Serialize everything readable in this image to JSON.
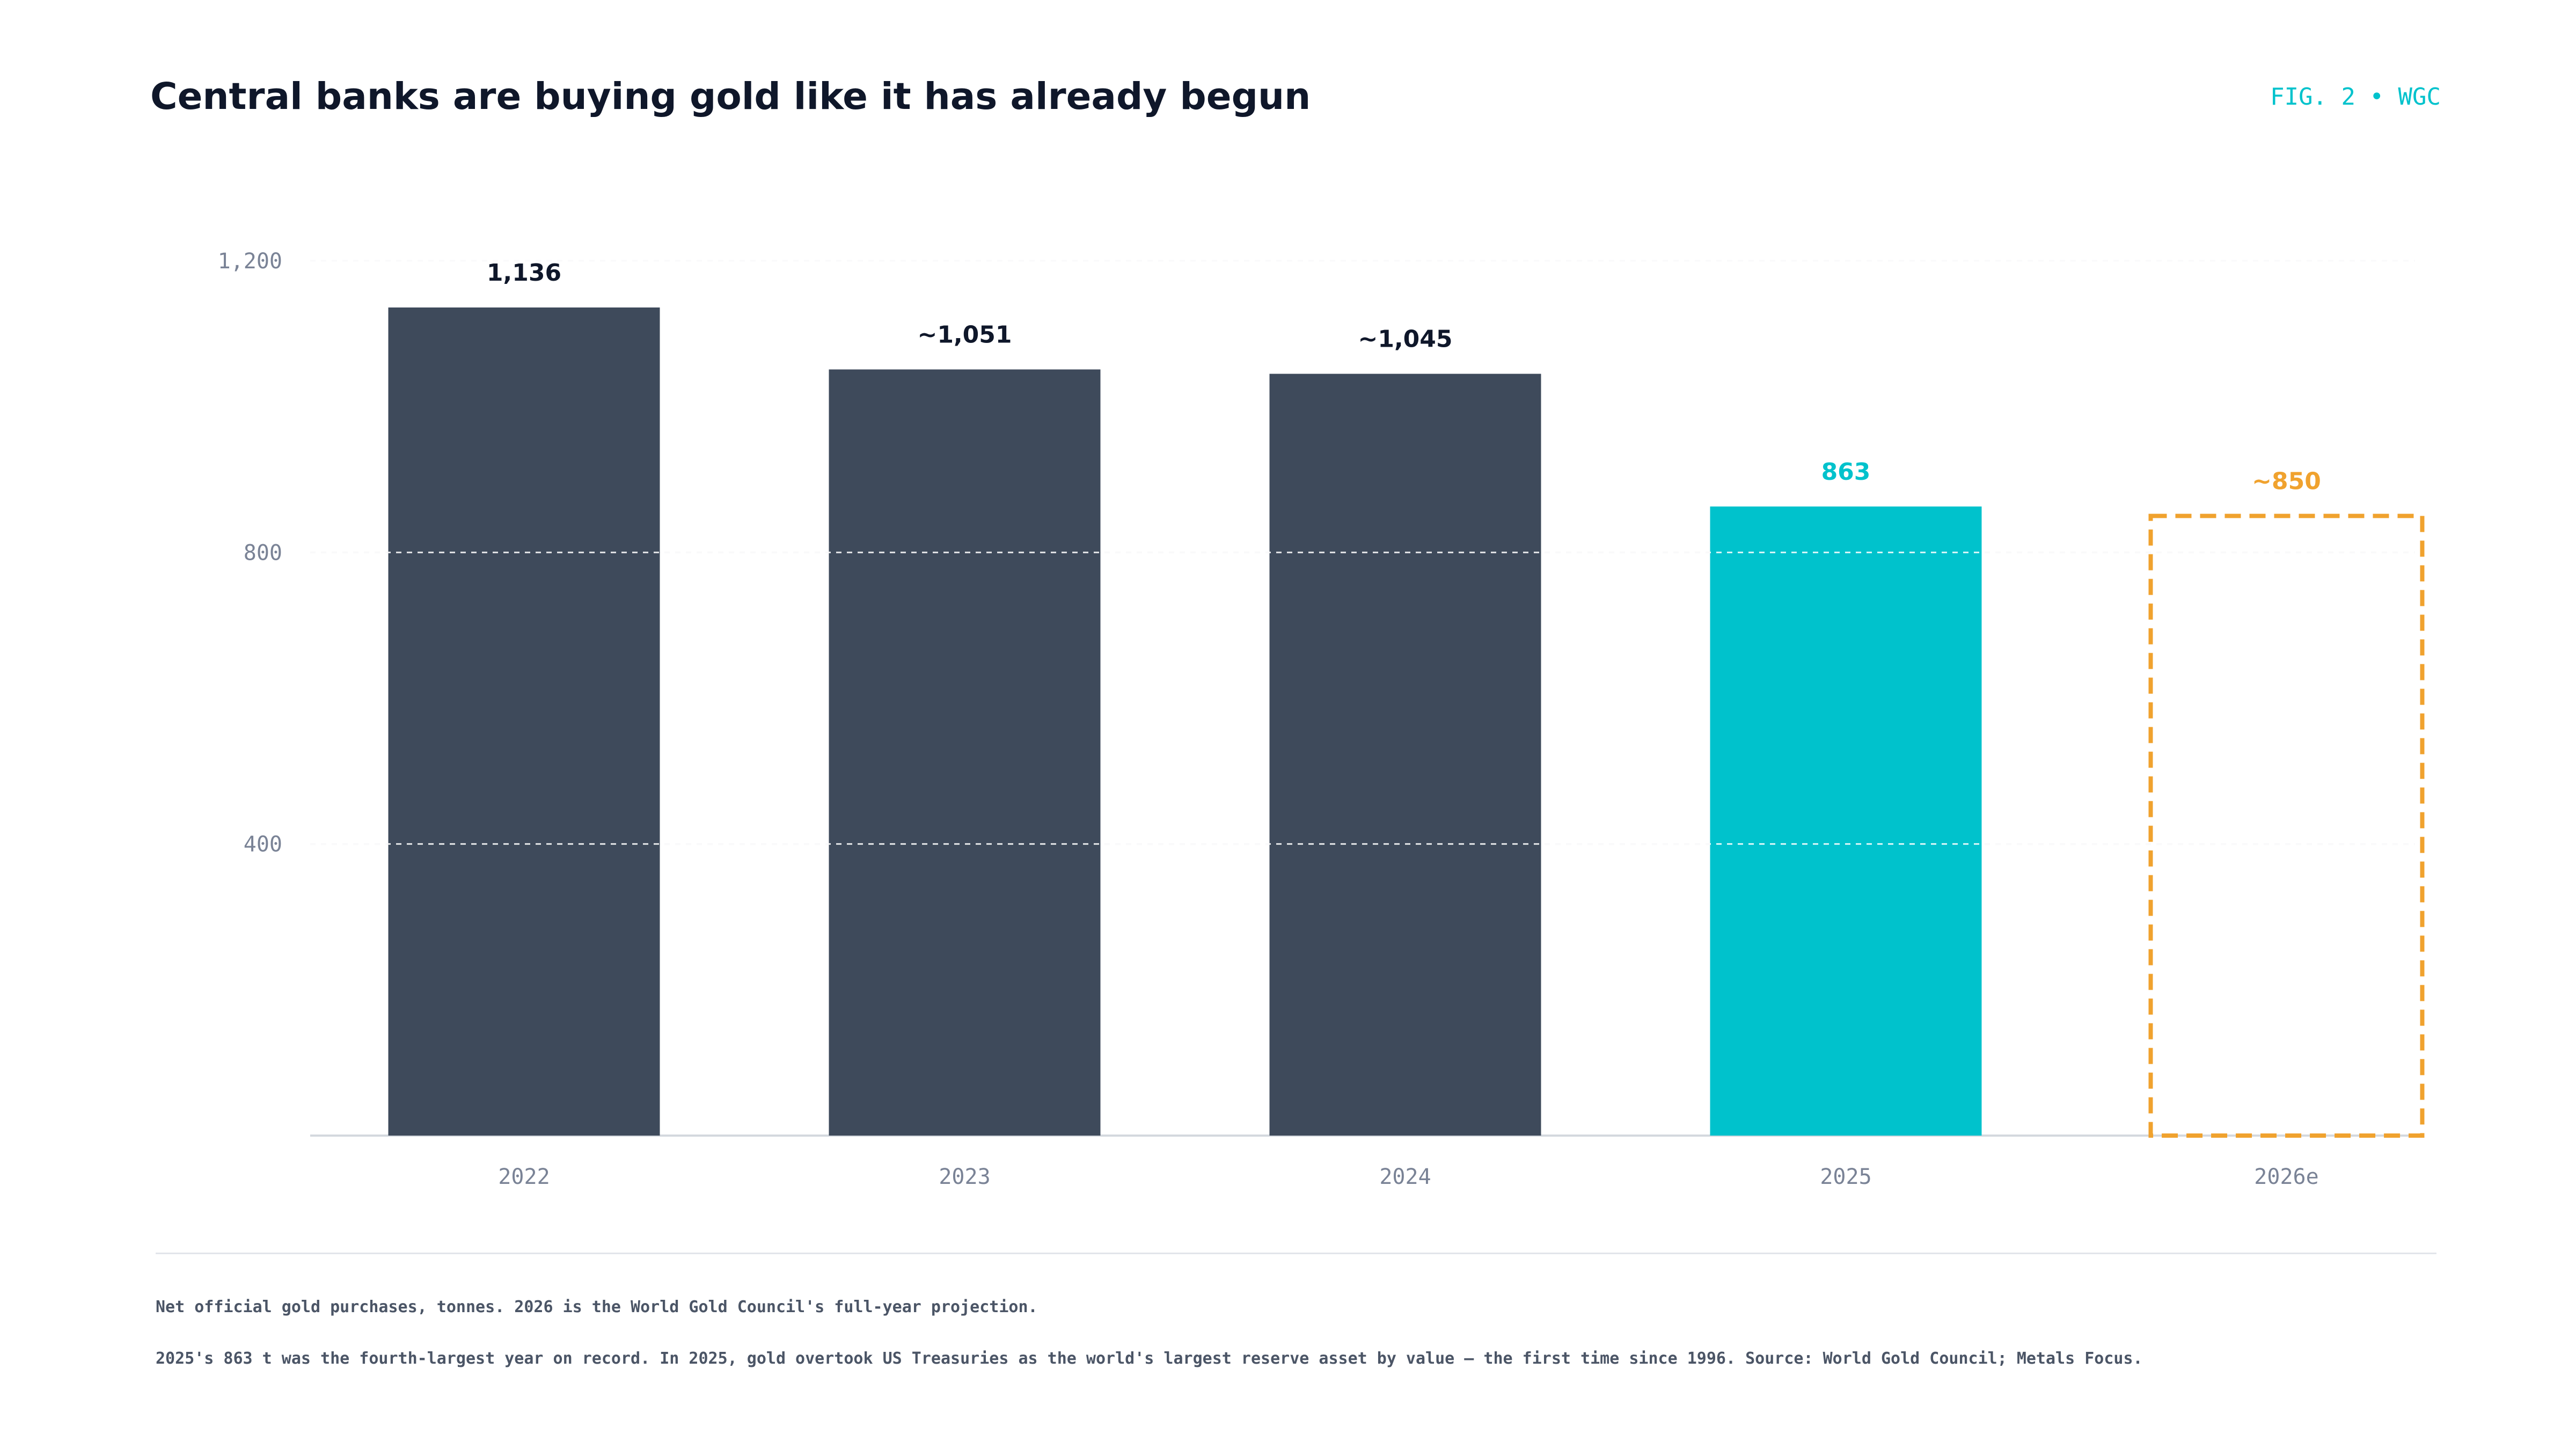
{
  "header": {
    "title": "Central banks are buying gold like it has already begun",
    "fig_tag": "FIG. 2 • WGC"
  },
  "colors": {
    "historic_bar": "#3e4a5b",
    "latest_bar": "#00c2cc",
    "estimate_outline": "#f0a22e",
    "value_label": "#0f172a",
    "axis_text": "#7a8396",
    "grid": "#d9dde3"
  },
  "chart_data": {
    "type": "bar",
    "title": "Central banks are buying gold like it has already begun",
    "xlabel": "",
    "ylabel": "",
    "ylim": [
      0,
      1200
    ],
    "y_ticks": [
      {
        "value": 400,
        "label": "400"
      },
      {
        "value": 800,
        "label": "800"
      },
      {
        "value": 1200,
        "label": "1,200"
      }
    ],
    "grid": true,
    "categories": [
      "2022",
      "2023",
      "2024",
      "2025",
      "2026e"
    ],
    "values": [
      1136,
      1051,
      1045,
      863,
      850
    ],
    "value_labels": [
      "1,136",
      "~1,051",
      "~1,045",
      "863",
      "~850"
    ],
    "bar_styles": [
      "historic",
      "historic",
      "historic",
      "latest",
      "estimate"
    ]
  },
  "footer": {
    "note_1": "Net official gold purchases, tonnes. 2026 is the World Gold Council's full-year projection.",
    "note_2": "2025's 863 t was the fourth-largest year on record. In 2025, gold overtook US Treasuries as the world's largest reserve asset by value — the first time since 1996. Source: World Gold Council; Metals Focus."
  }
}
